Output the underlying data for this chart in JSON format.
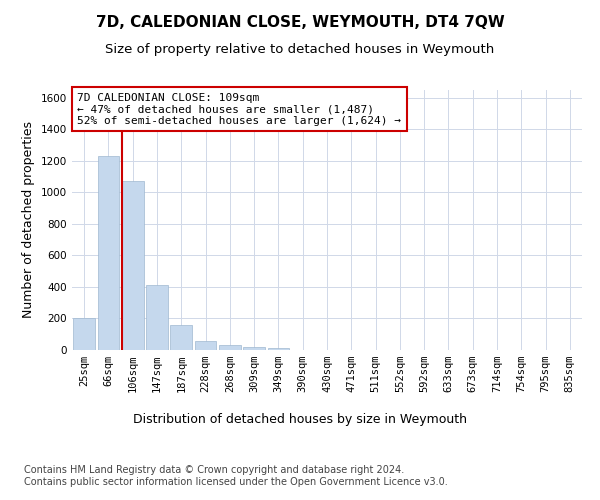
{
  "title": "7D, CALEDONIAN CLOSE, WEYMOUTH, DT4 7QW",
  "subtitle": "Size of property relative to detached houses in Weymouth",
  "xlabel": "Distribution of detached houses by size in Weymouth",
  "ylabel": "Number of detached properties",
  "categories": [
    "25sqm",
    "66sqm",
    "106sqm",
    "147sqm",
    "187sqm",
    "228sqm",
    "268sqm",
    "309sqm",
    "349sqm",
    "390sqm",
    "430sqm",
    "471sqm",
    "511sqm",
    "552sqm",
    "592sqm",
    "633sqm",
    "673sqm",
    "714sqm",
    "754sqm",
    "795sqm",
    "835sqm"
  ],
  "values": [
    200,
    1230,
    1070,
    410,
    160,
    60,
    30,
    20,
    13,
    0,
    0,
    0,
    0,
    0,
    0,
    0,
    0,
    0,
    0,
    0,
    0
  ],
  "bar_color": "#c5d8ed",
  "bar_edge_color": "#a0b8d0",
  "vline_bin_index": 2,
  "vline_color": "#cc0000",
  "annotation_text": "7D CALEDONIAN CLOSE: 109sqm\n← 47% of detached houses are smaller (1,487)\n52% of semi-detached houses are larger (1,624) →",
  "annotation_box_color": "#ffffff",
  "annotation_box_edge_color": "#cc0000",
  "ylim": [
    0,
    1650
  ],
  "yticks": [
    0,
    200,
    400,
    600,
    800,
    1000,
    1200,
    1400,
    1600
  ],
  "footer": "Contains HM Land Registry data © Crown copyright and database right 2024.\nContains public sector information licensed under the Open Government Licence v3.0.",
  "bg_color": "#ffffff",
  "grid_color": "#d0d8e8",
  "title_fontsize": 11,
  "subtitle_fontsize": 9.5,
  "axis_label_fontsize": 9,
  "tick_fontsize": 7.5,
  "footer_fontsize": 7,
  "annotation_fontsize": 8
}
